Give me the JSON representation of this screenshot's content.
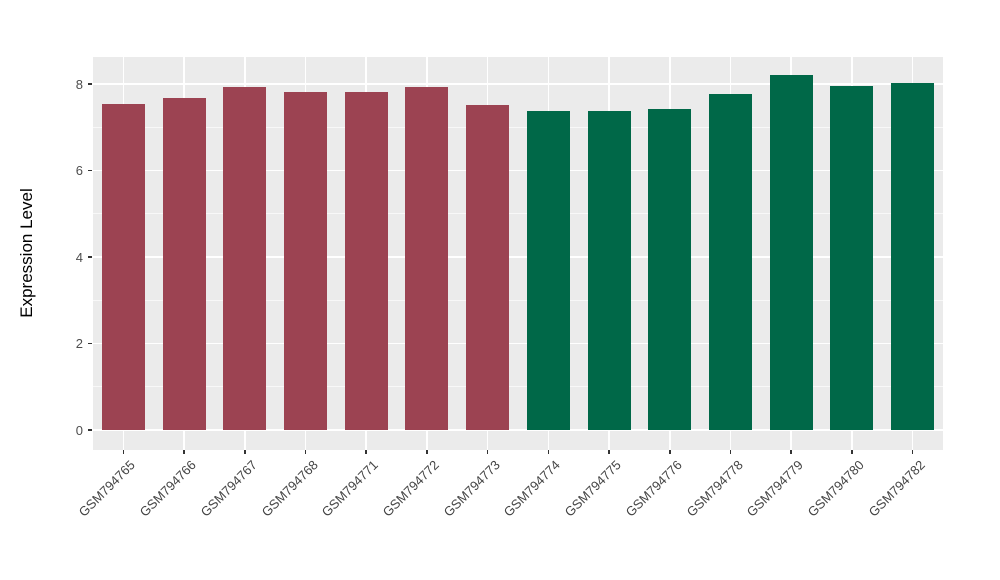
{
  "chart_data": {
    "type": "bar",
    "title": "",
    "xlabel": "",
    "ylabel": "Expression Level",
    "ylim": [
      -0.46,
      8.63
    ],
    "yticks": [
      0,
      2,
      4,
      6,
      8
    ],
    "y_minor_ticks": [
      1,
      3,
      5,
      7
    ],
    "grid": "horizontal major+minor white lines, vertical white lines at category centers, gray panel background",
    "legend": "none",
    "categories": [
      "GSM794765",
      "GSM794766",
      "GSM794767",
      "GSM794768",
      "GSM794771",
      "GSM794772",
      "GSM794773",
      "GSM794774",
      "GSM794775",
      "GSM794776",
      "GSM794778",
      "GSM794779",
      "GSM794780",
      "GSM794782"
    ],
    "values": [
      7.55,
      7.68,
      7.93,
      7.83,
      7.83,
      7.93,
      7.51,
      7.38,
      7.38,
      7.42,
      7.77,
      8.22,
      7.95,
      8.02
    ],
    "bar_colors": [
      "#9C4352",
      "#9C4352",
      "#9C4352",
      "#9C4352",
      "#9C4352",
      "#9C4352",
      "#9C4352",
      "#006848",
      "#006848",
      "#006848",
      "#006848",
      "#006848",
      "#006848",
      "#006848"
    ],
    "group_colors": {
      "left_group": "#9C4352",
      "right_group": "#006848"
    },
    "style_colors": {
      "panel_background": "#EBEBEB",
      "gridline": "#FFFFFF",
      "tick_mark": "#333333",
      "tick_label": "#4D4D4D",
      "axis_title": "#000000"
    }
  }
}
